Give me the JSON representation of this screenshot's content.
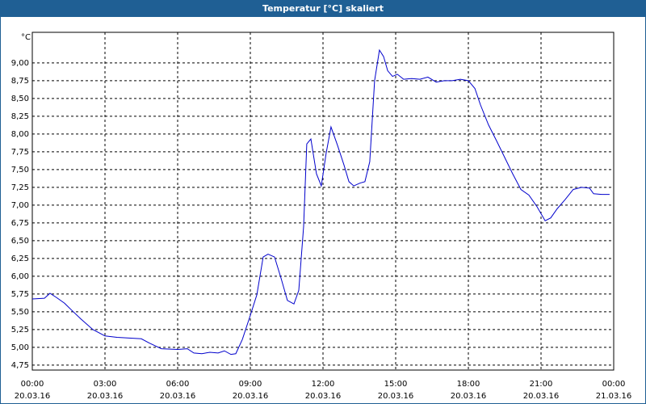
{
  "chart_data": {
    "type": "line",
    "title": "Temperatur [°C] skaliert",
    "y_label": "°C",
    "series": [
      {
        "name": "Temperatur",
        "color": "#0000cc",
        "x": [
          0,
          0.5,
          0.73,
          1.0,
          1.33,
          1.6,
          2.0,
          2.5,
          3.0,
          3.5,
          4.0,
          4.5,
          4.83,
          5.33,
          6.0,
          6.4,
          6.67,
          7.0,
          7.33,
          7.67,
          7.93,
          8.2,
          8.4,
          8.67,
          9.0,
          9.27,
          9.53,
          9.73,
          10.0,
          10.27,
          10.53,
          10.8,
          11.0,
          11.2,
          11.33,
          11.5,
          11.73,
          11.93,
          12.13,
          12.33,
          12.6,
          12.87,
          13.07,
          13.27,
          13.53,
          13.73,
          13.93,
          14.13,
          14.33,
          14.5,
          14.67,
          14.87,
          15.07,
          15.33,
          15.67,
          16.0,
          16.33,
          16.67,
          17.0,
          17.33,
          17.67,
          18.0,
          18.27,
          18.5,
          18.83,
          19.17,
          19.5,
          19.83,
          20.17,
          20.5,
          20.83,
          21.17,
          21.4,
          21.67,
          22.0,
          22.33,
          22.67,
          23.0,
          23.17,
          23.5,
          23.83
        ],
        "values": [
          5.68,
          5.69,
          5.76,
          5.7,
          5.62,
          5.53,
          5.4,
          5.25,
          5.16,
          5.14,
          5.13,
          5.12,
          5.06,
          4.98,
          4.97,
          4.98,
          4.92,
          4.91,
          4.93,
          4.92,
          4.95,
          4.9,
          4.91,
          5.11,
          5.45,
          5.74,
          6.27,
          6.31,
          6.27,
          5.97,
          5.66,
          5.61,
          5.8,
          6.7,
          7.86,
          7.93,
          7.44,
          7.27,
          7.73,
          8.1,
          7.84,
          7.56,
          7.33,
          7.27,
          7.31,
          7.33,
          7.61,
          8.75,
          9.18,
          9.09,
          8.89,
          8.81,
          8.84,
          8.77,
          8.78,
          8.77,
          8.8,
          8.73,
          8.75,
          8.75,
          8.77,
          8.75,
          8.64,
          8.41,
          8.13,
          7.9,
          7.67,
          7.44,
          7.22,
          7.14,
          6.98,
          6.78,
          6.82,
          6.95,
          7.08,
          7.22,
          7.25,
          7.24,
          7.16,
          7.15,
          7.15
        ]
      }
    ],
    "xlim": [
      0,
      24
    ],
    "xticks": [
      {
        "value": 0,
        "label": "00:00"
      },
      {
        "value": 3,
        "label": "03:00"
      },
      {
        "value": 6,
        "label": "06:00"
      },
      {
        "value": 9,
        "label": "09:00"
      },
      {
        "value": 12,
        "label": "12:00"
      },
      {
        "value": 15,
        "label": "15:00"
      },
      {
        "value": 18,
        "label": "18:00"
      },
      {
        "value": 21,
        "label": "21:00"
      },
      {
        "value": 24,
        "label": "00:00"
      }
    ],
    "xtick_dates": [
      "20.03.16",
      "20.03.16",
      "20.03.16",
      "20.03.16",
      "20.03.16",
      "20.03.16",
      "20.03.16",
      "20.03.16",
      "21.03.16"
    ],
    "ylim": [
      4.68,
      9.43
    ],
    "yticks": [
      {
        "value": 4.75,
        "label": "4,75"
      },
      {
        "value": 5,
        "label": "5,00"
      },
      {
        "value": 5.25,
        "label": "5,25"
      },
      {
        "value": 5.5,
        "label": "5,50"
      },
      {
        "value": 5.75,
        "label": "5,75"
      },
      {
        "value": 6,
        "label": "6,00"
      },
      {
        "value": 6.25,
        "label": "6,25"
      },
      {
        "value": 6.5,
        "label": "6,50"
      },
      {
        "value": 6.75,
        "label": "6,75"
      },
      {
        "value": 7,
        "label": "7,00"
      },
      {
        "value": 7.25,
        "label": "7,25"
      },
      {
        "value": 7.5,
        "label": "7,50"
      },
      {
        "value": 7.75,
        "label": "7,75"
      },
      {
        "value": 8,
        "label": "8,00"
      },
      {
        "value": 8.25,
        "label": "8,25"
      },
      {
        "value": 8.5,
        "label": "8,50"
      },
      {
        "value": 8.75,
        "label": "8,75"
      },
      {
        "value": 9,
        "label": "9,00"
      }
    ],
    "grid": true
  }
}
